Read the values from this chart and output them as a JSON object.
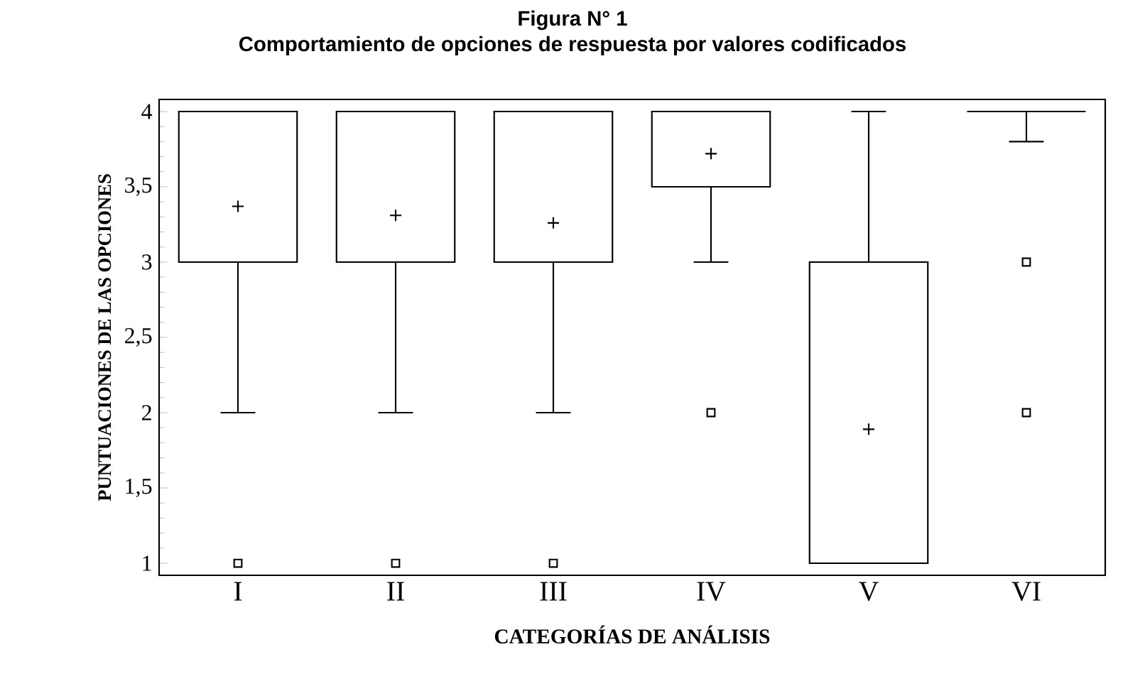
{
  "chart_data": {
    "type": "box",
    "title": "Figura N° 1",
    "subtitle": "Comportamiento de opciones de respuesta por valores codificados",
    "xlabel": "CATEGORÍAS DE ANÁLISIS",
    "ylabel": "PUNTUACIONES DE LAS OPCIONES",
    "categories": [
      "I",
      "II",
      "III",
      "IV",
      "V",
      "VI"
    ],
    "boxes": [
      {
        "low": 2,
        "q1": 3,
        "median": 4,
        "q3": 4,
        "high": 4,
        "mean": 3.37,
        "outliers": [
          1
        ]
      },
      {
        "low": 2,
        "q1": 3,
        "median": 4,
        "q3": 4,
        "high": 4,
        "mean": 3.31,
        "outliers": [
          1
        ]
      },
      {
        "low": 2,
        "q1": 3,
        "median": 4,
        "q3": 4,
        "high": 4,
        "mean": 3.26,
        "outliers": [
          1
        ]
      },
      {
        "low": 3,
        "q1": 3.5,
        "median": 4,
        "q3": 4,
        "high": 4,
        "mean": 3.72,
        "outliers": [
          2
        ]
      },
      {
        "low": 1,
        "q1": 1,
        "median": 1,
        "q3": 3,
        "high": 4,
        "mean": 1.89
      },
      {
        "low": 3.8,
        "q1": 4,
        "median": 4,
        "q3": 4,
        "high": 4,
        "outliers": [
          3,
          2
        ]
      }
    ],
    "ylim": [
      0.92,
      4.08
    ],
    "yticks": [
      1,
      {
        "value": 1.5,
        "label": "1,5"
      },
      2,
      {
        "value": 2.5,
        "label": "2,5"
      },
      3,
      {
        "value": 3.5,
        "label": "3,5"
      },
      4
    ]
  }
}
